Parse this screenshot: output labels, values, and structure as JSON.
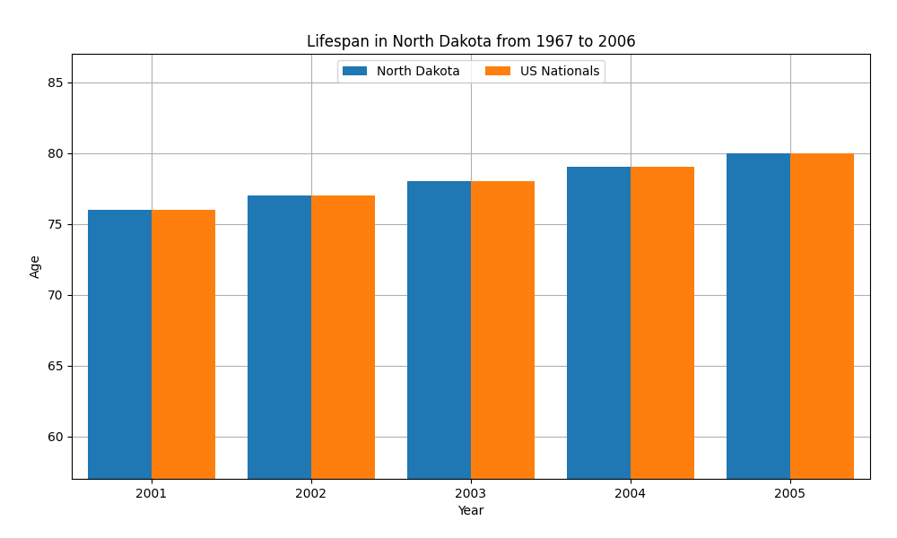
{
  "chart_data": {
    "type": "bar",
    "title": "Lifespan in North Dakota from 1967 to 2006",
    "x_label": "Year",
    "y_label": "Age",
    "categories": [
      "2001",
      "2002",
      "2003",
      "2004",
      "2005"
    ],
    "series": [
      {
        "name": "North Dakota",
        "values": [
          76,
          77,
          78,
          79,
          80
        ]
      },
      {
        "name": "US Nationals",
        "values": [
          76,
          77,
          78,
          79,
          80
        ]
      }
    ],
    "ylim": [
      57,
      87
    ],
    "yticks": [
      60,
      65,
      70,
      75,
      80,
      85
    ],
    "grid": true,
    "legend": "upper center"
  }
}
